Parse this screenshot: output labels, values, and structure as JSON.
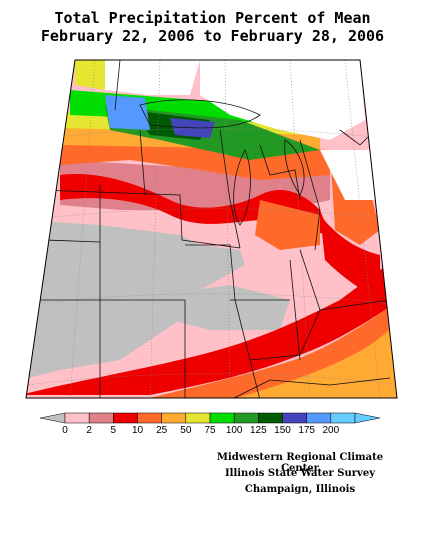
{
  "map": {
    "title_line1": "Total Precipitation Percent of Mean",
    "title_line2": "February 22, 2006 to February 28, 2006"
  },
  "legend": {
    "labels": [
      "0",
      "2",
      "5",
      "10",
      "25",
      "50",
      "75",
      "100",
      "125",
      "150",
      "175",
      "200"
    ],
    "colors": [
      "#c0c0c0",
      "#ffc0c8",
      "#e0808a",
      "#ee0000",
      "#ff6a2a",
      "#ffaa33",
      "#e6e632",
      "#00dd00",
      "#229922",
      "#005a00",
      "#4444bb",
      "#5599ff",
      "#66ccff"
    ]
  },
  "credits": {
    "line1": "Midwestern Regional Climate Center",
    "line2": "Illinois State Water Survey",
    "line3": "Champaign, Illinois"
  }
}
